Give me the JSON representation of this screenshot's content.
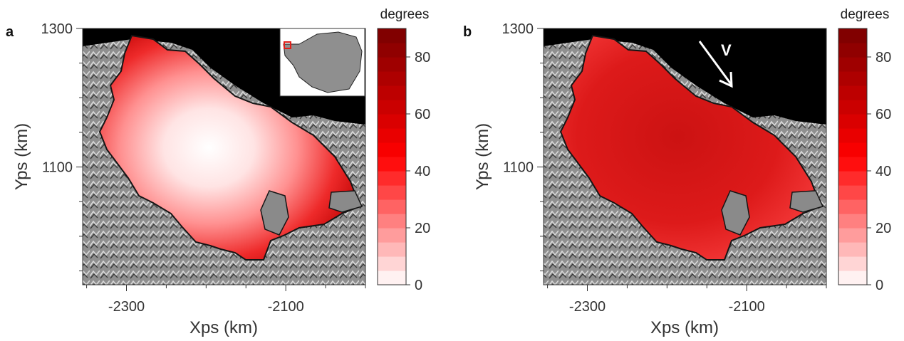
{
  "colors": {
    "ocean": "#000000",
    "land": "#8c8c8c",
    "shelf_outline": "#151515",
    "ramp_low": "#ffffff",
    "ramp_mid": "#ff0000",
    "ramp_high": "#7a0000",
    "arrow": "#ffffff",
    "inset_box": "#e0201a"
  },
  "chart_data": [
    {
      "type": "heatmap",
      "panel": "a",
      "xlabel": "Xps (km)",
      "ylabel": "Yps (km)",
      "x_ticks": [
        -2300,
        -2100
      ],
      "y_ticks": [
        1100,
        1300
      ],
      "xlim": [
        -2355,
        -2000
      ],
      "ylim": [
        930,
        1300
      ],
      "colorbar": {
        "label": "degrees",
        "ticks": [
          0,
          20,
          40,
          60,
          80
        ],
        "range": [
          0,
          90
        ],
        "levels": 18
      },
      "inset": "antarctica-location-map",
      "dominant_value_deg": 30
    },
    {
      "type": "heatmap",
      "panel": "b",
      "xlabel": "Xps (km)",
      "ylabel": "Yps (km)",
      "x_ticks": [
        -2300,
        -2100
      ],
      "y_ticks": [
        1100,
        1300
      ],
      "xlim": [
        -2355,
        -2000
      ],
      "ylim": [
        930,
        1300
      ],
      "colorbar": {
        "label": "degrees",
        "ticks": [
          0,
          20,
          40,
          60,
          80
        ],
        "range": [
          0,
          90
        ],
        "levels": 18
      },
      "annotation": "V",
      "dominant_value_deg": 65
    }
  ]
}
